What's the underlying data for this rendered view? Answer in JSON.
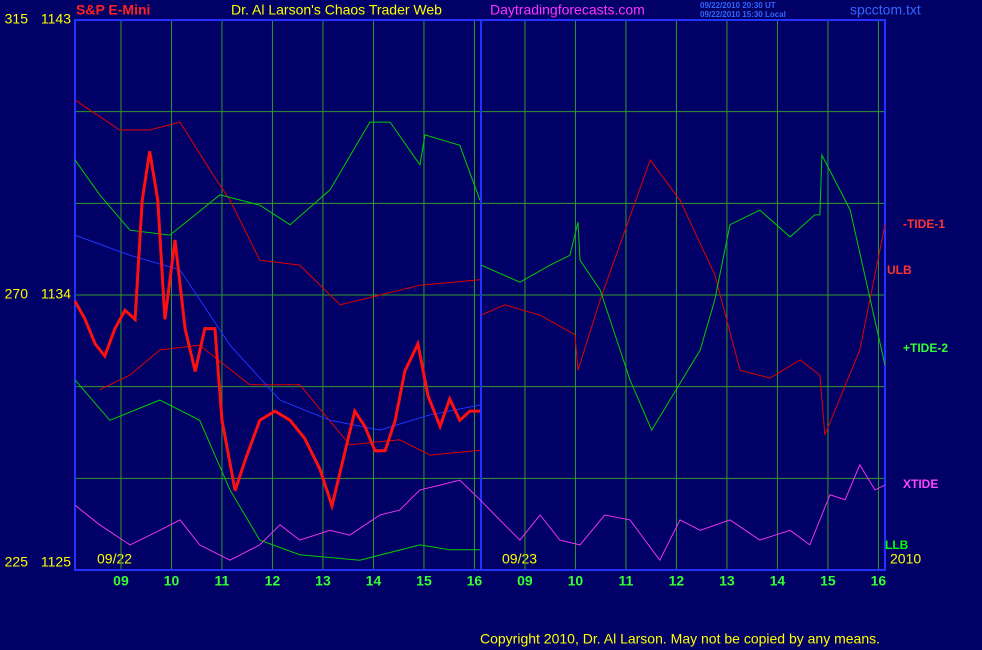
{
  "chart_data": {
    "type": "line",
    "header": {
      "left": "S&P E-Mini",
      "title": "Dr. Al Larson's Chaos Trader Web",
      "site": "Daytradingforecasts.com",
      "stamp": [
        "09/22/2010 20:30 UT",
        "09/22/2010 15:30 Local"
      ],
      "file": "spcctom.txt"
    },
    "footer": "Copyright 2010, Dr. Al Larson. May not be copied by any means.",
    "date_labels": [
      "09/22",
      "09/23",
      "2010"
    ],
    "xlim": [
      -0.91,
      15.13
    ],
    "xticks": [
      {
        "value": 0,
        "label": "09"
      },
      {
        "value": 1,
        "label": "10"
      },
      {
        "value": 2,
        "label": "11"
      },
      {
        "value": 3,
        "label": "12"
      },
      {
        "value": 4,
        "label": "13"
      },
      {
        "value": 5,
        "label": "14"
      },
      {
        "value": 6,
        "label": "15"
      },
      {
        "value": 7,
        "label": "16"
      },
      {
        "value": 8,
        "label": "09"
      },
      {
        "value": 9,
        "label": "10"
      },
      {
        "value": 10,
        "label": "11"
      },
      {
        "value": 11,
        "label": "12"
      },
      {
        "value": 12,
        "label": "13"
      },
      {
        "value": 13,
        "label": "14"
      },
      {
        "value": 14,
        "label": "15"
      },
      {
        "value": 15,
        "label": "16"
      }
    ],
    "ylim": [
      225,
      315
    ],
    "yticks": [
      225,
      270,
      315
    ],
    "y2lim": [
      1125,
      1143
    ],
    "y2ticks": [
      1125,
      1134,
      1143
    ],
    "grid": true,
    "series": [
      {
        "name": "ULB",
        "color": "#e00000",
        "x": [
          -0.91,
          -0.02,
          0.57,
          1.17,
          1.76,
          2.16,
          2.75,
          3.54,
          4.34,
          5.13,
          5.92,
          7.11
        ],
        "values": [
          301.9,
          297.0,
          297.0,
          298.3,
          290.5,
          285.5,
          275.7,
          274.9,
          268.4,
          270.0,
          271.6,
          272.5
        ]
      },
      {
        "color": "#e00000",
        "x": [
          -0.42,
          0.18,
          0.77,
          1.56,
          2.55,
          3.54,
          4.53,
          5.52,
          6.12,
          7.11
        ],
        "values": [
          254.5,
          256.9,
          261.0,
          261.8,
          255.3,
          255.3,
          245.5,
          246.3,
          243.8,
          244.6
        ]
      },
      {
        "color": "#00cc00",
        "x": [
          -0.91,
          -0.42,
          0.18,
          0.97,
          1.96,
          2.75,
          3.35,
          4.14,
          4.93,
          5.33,
          5.92,
          6.02,
          6.71,
          7.11
        ],
        "values": [
          292.1,
          286.4,
          280.6,
          279.8,
          286.4,
          284.7,
          281.5,
          287.2,
          298.3,
          298.3,
          291.3,
          296.2,
          294.5,
          285.5
        ]
      },
      {
        "name": "LLB",
        "color": "#00cc00",
        "x": [
          -0.91,
          -0.22,
          0.77,
          1.56,
          2.16,
          2.75,
          3.54,
          4.73,
          5.92,
          6.51,
          7.11
        ],
        "values": [
          256.1,
          249.5,
          252.8,
          249.5,
          238.1,
          229.9,
          227.5,
          226.6,
          229.1,
          228.3,
          228.3
        ]
      },
      {
        "color": "#2233ff",
        "x": [
          -0.91,
          0.18,
          1.17,
          2.16,
          3.15,
          4.14,
          5.13,
          6.12,
          7.11
        ],
        "values": [
          279.8,
          276.5,
          274.1,
          261.8,
          252.8,
          249.5,
          247.9,
          250.4,
          252.0
        ]
      },
      {
        "name": "XTIDE",
        "color": "#ee33ee",
        "x": [
          -0.91,
          -0.42,
          0.18,
          0.77,
          1.17,
          1.56,
          2.16,
          2.75,
          3.15,
          3.54,
          4.14,
          4.53,
          5.13,
          5.52,
          5.92,
          6.32,
          6.71,
          7.11,
          7.5,
          7.9,
          8.3,
          8.69,
          9.09,
          9.58,
          10.08,
          10.67,
          11.07,
          11.47,
          12.06,
          12.65,
          13.25,
          13.64,
          14.04,
          14.34,
          14.63,
          14.93,
          15.13
        ],
        "values": [
          235.6,
          232.4,
          229.1,
          231.5,
          233.2,
          229.1,
          226.6,
          229.1,
          232.4,
          229.9,
          231.5,
          230.7,
          234.0,
          234.8,
          238.1,
          238.9,
          239.7,
          236.5,
          233.2,
          229.9,
          234.0,
          229.9,
          229.1,
          234.0,
          233.2,
          226.6,
          233.2,
          231.5,
          233.2,
          229.9,
          231.5,
          229.1,
          237.3,
          236.5,
          242.2,
          238.1,
          238.9
        ]
      },
      {
        "name": "-TIDE-1",
        "color": "#e00000",
        "x": [
          7.13,
          7.6,
          8.3,
          8.99,
          9.05,
          9.49,
          10.48,
          11.07,
          11.76,
          12.26,
          12.85,
          13.45,
          13.84,
          13.94,
          14.63,
          15.13
        ],
        "values": [
          266.7,
          268.4,
          266.7,
          263.5,
          257.7,
          269.2,
          292.1,
          285.5,
          273.3,
          257.7,
          256.4,
          259.4,
          256.9,
          247.1,
          261.0,
          281.5
        ]
      },
      {
        "name": "+TIDE-2",
        "color": "#00cc00",
        "x": [
          7.13,
          7.9,
          8.5,
          8.89,
          9.05,
          9.09,
          9.49,
          10.08,
          10.51,
          11.47,
          11.76,
          12.06,
          12.65,
          13.25,
          13.74,
          13.84,
          13.88,
          14.44,
          15.13
        ],
        "values": [
          274.9,
          272.1,
          274.9,
          276.5,
          281.9,
          275.7,
          270.8,
          256.1,
          247.9,
          261.0,
          269.2,
          281.5,
          283.9,
          279.5,
          283.1,
          283.1,
          292.9,
          283.9,
          258.5
        ]
      },
      {
        "color": "#ff1010",
        "axis": "y2",
        "x": [
          -0.91,
          -0.71,
          -0.51,
          -0.32,
          -0.12,
          0.08,
          0.28,
          0.42,
          0.57,
          0.73,
          0.87,
          1.07,
          1.27,
          1.47,
          1.66,
          1.86,
          2.0,
          2.26,
          2.46,
          2.75,
          3.05,
          3.35,
          3.64,
          3.94,
          4.18,
          4.44,
          4.63,
          4.83,
          5.03,
          5.23,
          5.43,
          5.62,
          5.88,
          6.08,
          6.32,
          6.51,
          6.71,
          6.91,
          7.11
        ],
        "values": [
          1133.8,
          1133.2,
          1132.4,
          1132.0,
          1132.9,
          1133.5,
          1133.2,
          1137.1,
          1138.7,
          1137.1,
          1133.2,
          1135.8,
          1132.9,
          1131.5,
          1132.9,
          1132.9,
          1129.9,
          1127.6,
          1128.6,
          1129.9,
          1130.2,
          1129.9,
          1129.3,
          1128.3,
          1127.1,
          1128.9,
          1130.2,
          1129.7,
          1128.9,
          1128.9,
          1129.9,
          1131.5,
          1132.4,
          1130.7,
          1129.7,
          1130.6,
          1129.9,
          1130.2,
          1130.2
        ]
      }
    ]
  }
}
